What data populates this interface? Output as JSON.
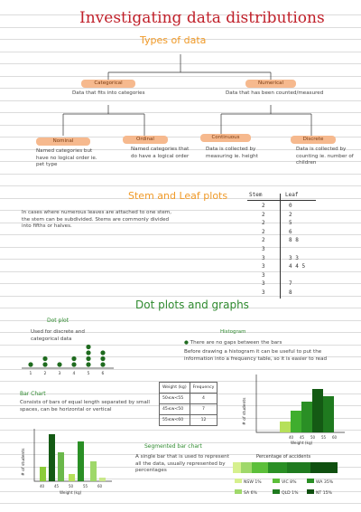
{
  "title": "Investigating data distributions",
  "types_heading": "Types of data",
  "categorical": {
    "label": "Categorical",
    "desc": "Data that fits into categories"
  },
  "numerical": {
    "label": "Numerical",
    "desc": "Data that has been counted/measured"
  },
  "nominal": {
    "label": "Nominal",
    "desc": "Named categories but have no logical order ie. pet type"
  },
  "ordinal": {
    "label": "Ordinal",
    "desc": "Named categories that do have a logical order"
  },
  "continuous": {
    "label": "Continuous",
    "desc": "Data is collected by measuring ie. height"
  },
  "discrete": {
    "label": "Discrete",
    "desc": "Data is collected by counting ie. number of children"
  },
  "stem_leaf": {
    "heading": "Stem and Leaf plots",
    "desc": "In cases where numerous leaves are attached to one stem, the stem can be subdivided. Stems are commonly divided into fifths or halves.",
    "col_stem": "Stem",
    "col_leaf": "Leaf",
    "rows": [
      {
        "stem": "2",
        "leaf": "0"
      },
      {
        "stem": "2",
        "leaf": "2"
      },
      {
        "stem": "2",
        "leaf": "5"
      },
      {
        "stem": "2",
        "leaf": "6"
      },
      {
        "stem": "2",
        "leaf": "8 8"
      },
      {
        "stem": "3",
        "leaf": ""
      },
      {
        "stem": "3",
        "leaf": "3 3"
      },
      {
        "stem": "3",
        "leaf": "4 4 5"
      },
      {
        "stem": "3",
        "leaf": ""
      },
      {
        "stem": "3",
        "leaf": "7"
      },
      {
        "stem": "3",
        "leaf": "8"
      }
    ]
  },
  "dot_heading": "Dot plots and graphs",
  "dot_plot": {
    "label": "Dot plot",
    "desc": "Used for discrete and categorical data",
    "axis": [
      "1",
      "2",
      "3",
      "4",
      "5",
      "6"
    ],
    "counts": [
      1,
      2,
      1,
      2,
      4,
      3
    ]
  },
  "histogram": {
    "label": "Histogram",
    "bullet": "There are no gaps between the bars",
    "desc": "Before drawing a histogram it can be useful to put the information into a frequency table, so it is easier to read",
    "table_head": [
      "Weight (kg)",
      "Frequency"
    ],
    "table_rows": [
      [
        "50≤w<55",
        "4"
      ],
      [
        "45≤w<50",
        "7"
      ],
      [
        "55≤w<60",
        "12"
      ]
    ],
    "ylabel": "# of students",
    "xlabel": "Weight (kg)",
    "x_ticks": [
      "40",
      "45",
      "50",
      "55",
      "60"
    ]
  },
  "bar_chart": {
    "label": "Bar Chart",
    "desc": "Consists of bars of equal length separated by small spaces, can be horizontal or vertical",
    "ylabel": "# of students",
    "xlabel": "Weight (kg)",
    "x_ticks": [
      "40",
      "45",
      "50",
      "55",
      "60"
    ]
  },
  "segmented": {
    "label": "Segmented bar chart",
    "desc": "A single bar that is used to represent all the data, usually represented by percentages",
    "chart_title": "Percentage of accidents",
    "legend": [
      "NSW 1%",
      "VIC 8%",
      "WA 35%",
      "SA 6%",
      "QLD 1%",
      "NT 15%"
    ]
  },
  "colors": {
    "title": "#c0202a",
    "orange": "#f09a28",
    "green": "#2f8a2f",
    "dark_green": "#1f6b1f",
    "pill": "#f6b98e"
  }
}
